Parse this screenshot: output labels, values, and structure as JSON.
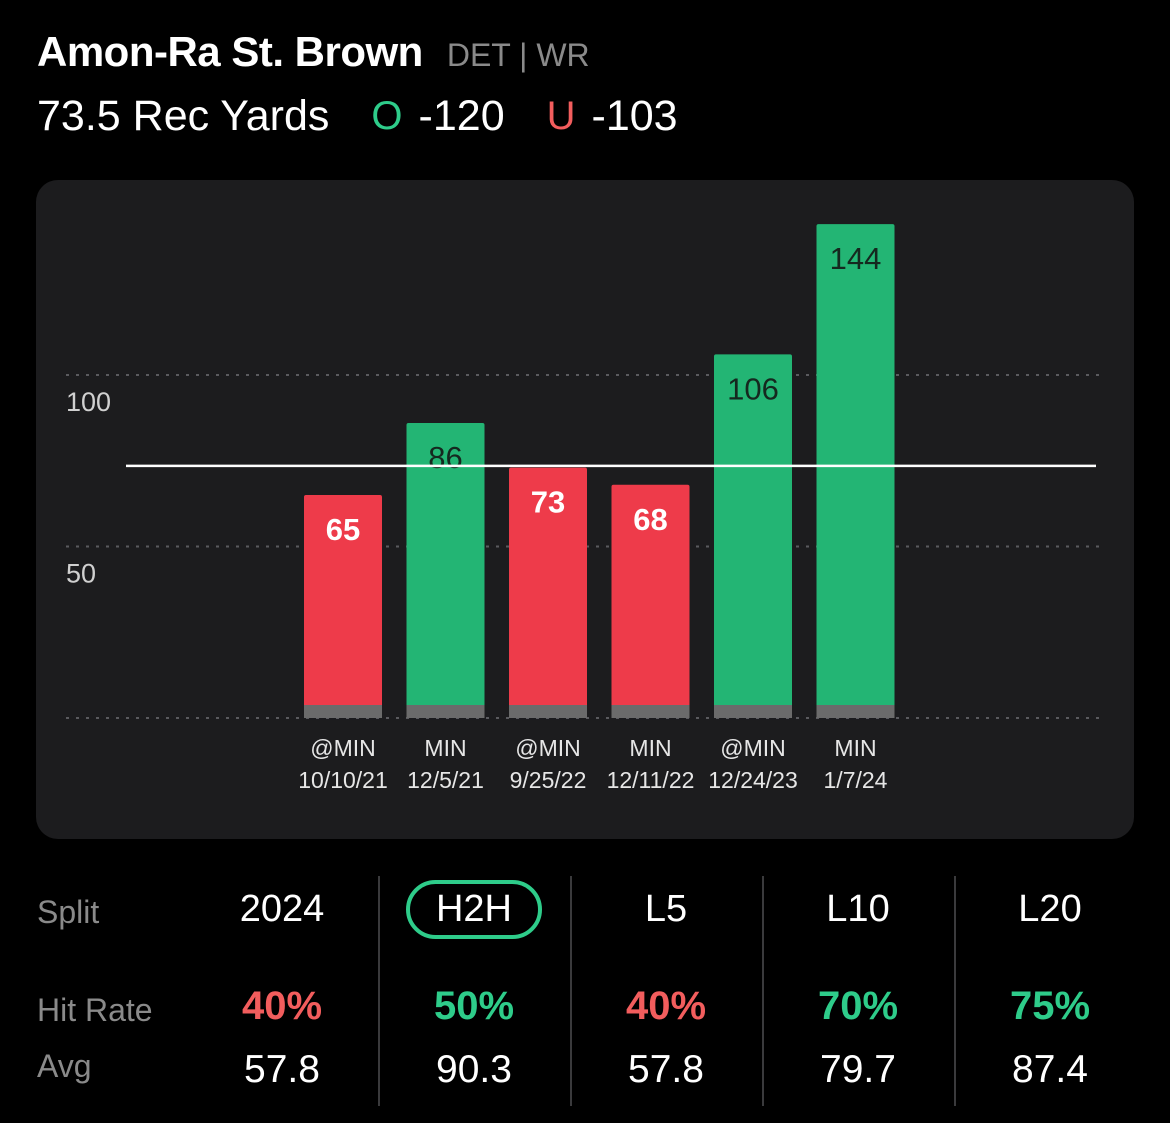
{
  "header": {
    "player_name": "Amon-Ra St. Brown",
    "team_position": "DET | WR",
    "prop_line": "73.5 Rec Yards",
    "over_letter": "O",
    "over_odds": "-120",
    "under_letter": "U",
    "under_odds": "-103"
  },
  "colors": {
    "over": "#23b574",
    "under": "#ee3b4a",
    "over_text": "#2ecc8a",
    "under_text": "#f25d5d",
    "card_bg": "#1c1c1e"
  },
  "chart_data": {
    "type": "bar",
    "title": "",
    "xlabel": "",
    "ylabel": "",
    "ylim": [
      0,
      150
    ],
    "yticks": [
      50,
      100
    ],
    "y_tick_labels": [
      "50",
      "100"
    ],
    "reference_line": 73.5,
    "grid": true,
    "categories": [
      {
        "opponent": "@MIN",
        "date": "10/10/21"
      },
      {
        "opponent": "MIN",
        "date": "12/5/21"
      },
      {
        "opponent": "@MIN",
        "date": "9/25/22"
      },
      {
        "opponent": "MIN",
        "date": "12/11/22"
      },
      {
        "opponent": "@MIN",
        "date": "12/24/23"
      },
      {
        "opponent": "MIN",
        "date": "1/7/24"
      }
    ],
    "values": [
      65,
      86,
      73,
      68,
      106,
      144
    ],
    "value_labels": [
      "65",
      "86",
      "73",
      "68",
      "106",
      "144"
    ],
    "results": [
      "under",
      "over",
      "under",
      "under",
      "over",
      "over"
    ]
  },
  "stats": {
    "labels": {
      "split": "Split",
      "hit_rate": "Hit Rate",
      "avg": "Avg"
    },
    "columns": [
      {
        "split": "2024",
        "hit_rate": "40%",
        "avg": "57.8",
        "hit": "under",
        "selected": false
      },
      {
        "split": "H2H",
        "hit_rate": "50%",
        "avg": "90.3",
        "hit": "over",
        "selected": true
      },
      {
        "split": "L5",
        "hit_rate": "40%",
        "avg": "57.8",
        "hit": "under",
        "selected": false
      },
      {
        "split": "L10",
        "hit_rate": "70%",
        "avg": "79.7",
        "hit": "over",
        "selected": false
      },
      {
        "split": "L20",
        "hit_rate": "75%",
        "avg": "87.4",
        "hit": "over",
        "selected": false
      }
    ]
  }
}
